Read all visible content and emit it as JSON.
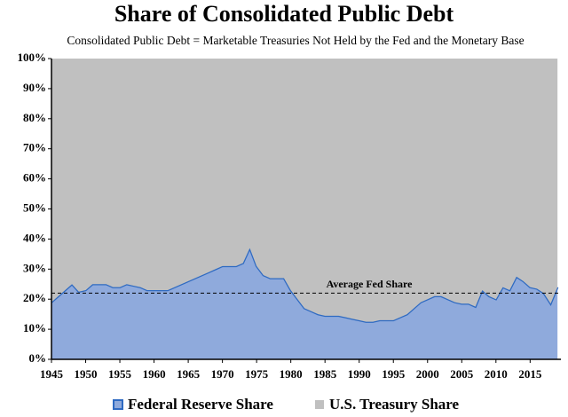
{
  "chart_data": {
    "type": "stacked_area",
    "title": "Share of Consolidated Public Debt",
    "subtitle": "Consolidated Public Debt = Marketable Treasuries Not Held by the Fed and the Monetary Base",
    "x": [
      1945,
      1946,
      1947,
      1948,
      1949,
      1950,
      1951,
      1952,
      1953,
      1954,
      1955,
      1956,
      1957,
      1958,
      1959,
      1960,
      1961,
      1962,
      1963,
      1964,
      1965,
      1966,
      1967,
      1968,
      1969,
      1970,
      1971,
      1972,
      1973,
      1974,
      1975,
      1976,
      1977,
      1978,
      1979,
      1980,
      1981,
      1982,
      1983,
      1984,
      1985,
      1986,
      1987,
      1988,
      1989,
      1990,
      1991,
      1992,
      1993,
      1994,
      1995,
      1996,
      1997,
      1998,
      1999,
      2000,
      2001,
      2002,
      2003,
      2004,
      2005,
      2006,
      2007,
      2008,
      2009,
      2010,
      2011,
      2012,
      2013,
      2014,
      2015,
      2016,
      2017,
      2018,
      2019
    ],
    "series": [
      {
        "name": "Federal Reserve Share",
        "color": "#8faadc",
        "line_color": "#2e6ac2",
        "values": [
          19,
          21,
          23,
          25,
          22.5,
          23,
          25,
          25,
          25,
          24,
          24,
          25,
          24.5,
          24,
          23,
          23,
          23,
          23,
          24,
          25,
          26,
          27,
          28,
          29,
          30,
          31,
          31,
          31,
          32,
          37,
          31,
          28,
          27,
          27,
          27,
          23,
          20,
          17,
          16,
          15,
          14.5,
          14.5,
          14.5,
          14,
          13.5,
          13,
          12.5,
          12.5,
          13,
          13,
          13,
          14,
          15,
          17,
          19,
          20,
          21,
          21,
          20,
          19,
          18.5,
          18.5,
          17.5,
          23,
          21,
          20,
          24,
          23,
          27.5,
          26,
          24,
          23.5,
          22,
          18.5,
          24
        ]
      },
      {
        "name": "U.S. Treasury Share",
        "color": "#c0c0c0",
        "values": [
          81,
          79,
          77,
          75,
          77.5,
          77,
          75,
          75,
          75,
          76,
          76,
          75,
          75.5,
          76,
          77,
          77,
          77,
          77,
          76,
          75,
          74,
          73,
          72,
          71,
          70,
          69,
          69,
          69,
          68,
          63,
          69,
          72,
          73,
          73,
          73,
          77,
          80,
          83,
          84,
          85,
          85.5,
          85.5,
          85.5,
          86,
          86.5,
          87,
          87.5,
          87.5,
          87,
          87,
          87,
          86,
          85,
          83,
          81,
          80,
          79,
          79,
          80,
          81,
          81.5,
          81.5,
          82.5,
          77,
          79,
          80,
          76,
          77,
          72.5,
          74,
          76,
          76.5,
          78,
          81.5,
          76
        ]
      }
    ],
    "annotation": {
      "label": "Average Fed Share",
      "value": 22
    },
    "xlim": [
      1945,
      2019.5
    ],
    "xticks": [
      1945,
      1950,
      1955,
      1960,
      1965,
      1970,
      1975,
      1980,
      1985,
      1990,
      1995,
      2000,
      2005,
      2010,
      2015
    ],
    "ylim": [
      0,
      100
    ],
    "yticks": [
      {
        "value": 0,
        "label": "0%"
      },
      {
        "value": 10,
        "label": "10%"
      },
      {
        "value": 20,
        "label": "20%"
      },
      {
        "value": 30,
        "label": "30%"
      },
      {
        "value": 40,
        "label": "40%"
      },
      {
        "value": 50,
        "label": "50%"
      },
      {
        "value": 60,
        "label": "60%"
      },
      {
        "value": 70,
        "label": "70%"
      },
      {
        "value": 80,
        "label": "80%"
      },
      {
        "value": 90,
        "label": "90%"
      },
      {
        "value": 100,
        "label": "100%"
      }
    ]
  }
}
